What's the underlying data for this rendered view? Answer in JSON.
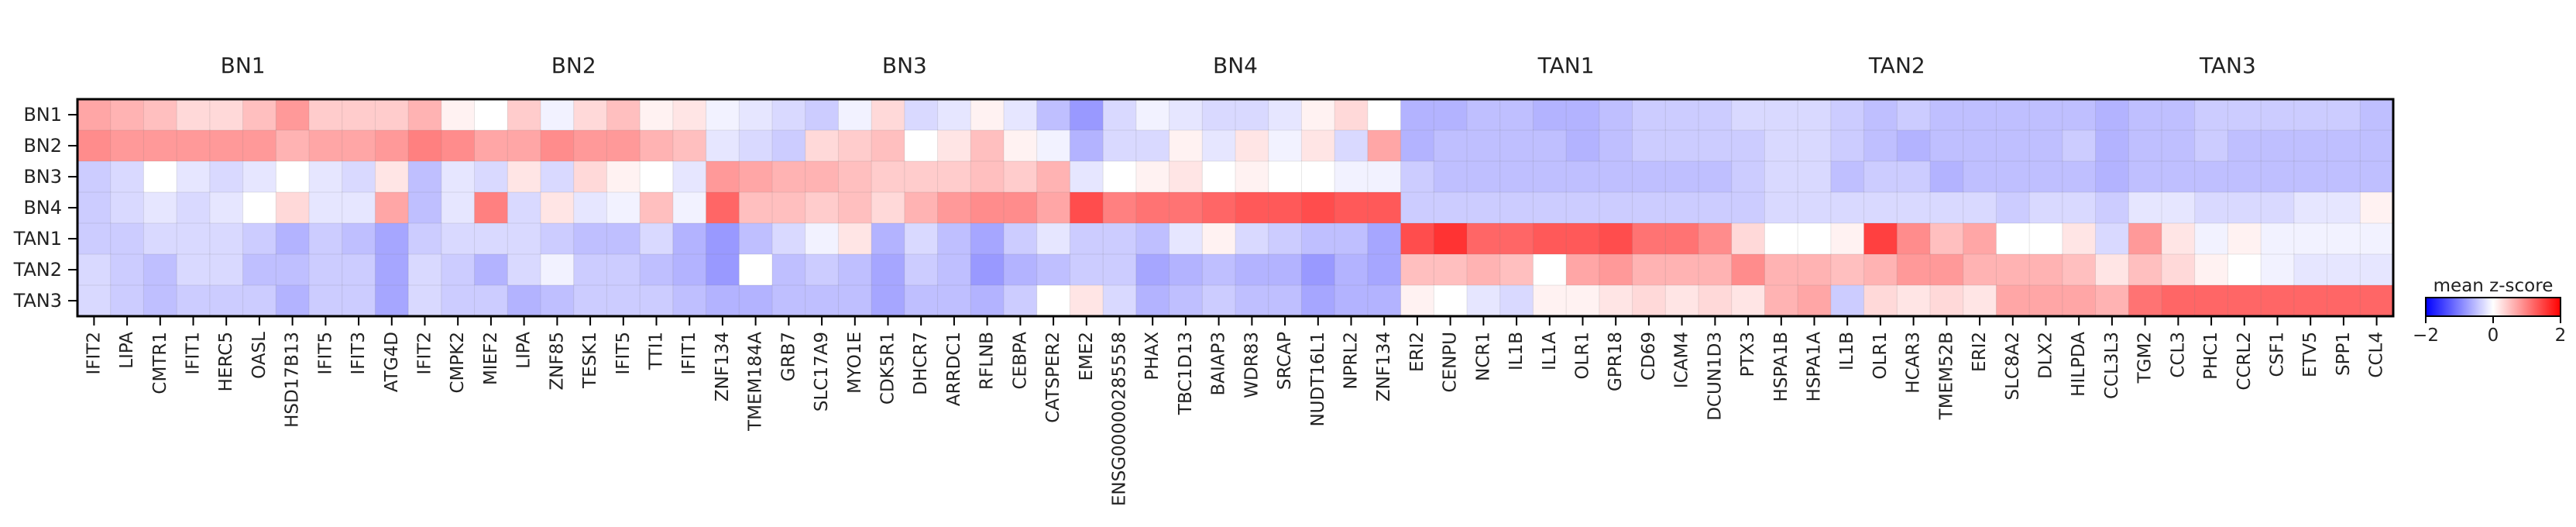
{
  "chart_data": {
    "type": "heatmap",
    "groups": [
      "BN1",
      "BN2",
      "BN3",
      "BN4",
      "TAN1",
      "TAN2",
      "TAN3"
    ],
    "rows": [
      "BN1",
      "BN2",
      "BN3",
      "BN4",
      "TAN1",
      "TAN2",
      "TAN3"
    ],
    "genes": [
      "IFIT2",
      "LIPA",
      "CMTR1",
      "IFIT1",
      "HERC5",
      "OASL",
      "HSD17B13",
      "IFIT5",
      "IFIT3",
      "ATG4D",
      "IFIT2",
      "CMPK2",
      "MIEF2",
      "LIPA",
      "ZNF85",
      "TESK1",
      "IFIT5",
      "TTI1",
      "IFIT1",
      "ZNF134",
      "TMEM184A",
      "GRB7",
      "SLC17A9",
      "MYO1E",
      "CDK5R1",
      "DHCR7",
      "ARRDC1",
      "RFLNB",
      "CEBPA",
      "CATSPER2",
      "EME2",
      "ENSG00000285558",
      "PHAX",
      "TBC1D13",
      "BAIAP3",
      "WDR83",
      "SRCAP",
      "NUDT16L1",
      "NPRL2",
      "ZNF134",
      "ERI2",
      "CENPU",
      "NCR1",
      "IL1B",
      "IL1A",
      "OLR1",
      "GPR18",
      "CD69",
      "ICAM4",
      "DCUN1D3",
      "PTX3",
      "HSPA1B",
      "HSPA1A",
      "IL1B",
      "OLR1",
      "HCAR3",
      "TMEM52B",
      "ERI2",
      "SLC8A2",
      "DLX2",
      "HILPDA",
      "CCL3L3",
      "TGM2",
      "CCL3",
      "PHC1",
      "CCRL2",
      "CSF1",
      "ETV5",
      "SPP1",
      "CCL4"
    ],
    "values": [
      [
        0.7,
        0.6,
        0.5,
        0.3,
        0.3,
        0.5,
        0.8,
        0.4,
        0.4,
        0.4,
        0.6,
        0.1,
        0.0,
        0.4,
        -0.1,
        0.3,
        0.5,
        0.1,
        0.2,
        -0.1,
        -0.2,
        -0.3,
        -0.4,
        -0.1,
        0.3,
        -0.3,
        -0.2,
        0.1,
        -0.2,
        -0.5,
        -0.8,
        -0.3,
        -0.1,
        -0.2,
        -0.3,
        -0.3,
        -0.2,
        0.1,
        0.3,
        0.0,
        -0.6,
        -0.6,
        -0.5,
        -0.5,
        -0.6,
        -0.6,
        -0.5,
        -0.4,
        -0.4,
        -0.4,
        -0.3,
        -0.3,
        -0.3,
        -0.4,
        -0.5,
        -0.4,
        -0.5,
        -0.5,
        -0.5,
        -0.5,
        -0.5,
        -0.6,
        -0.5,
        -0.5,
        -0.4,
        -0.4,
        -0.4,
        -0.4,
        -0.4,
        -0.5
      ],
      [
        0.9,
        0.8,
        0.8,
        0.8,
        0.8,
        0.8,
        0.6,
        0.7,
        0.7,
        0.8,
        1.0,
        0.9,
        0.7,
        0.7,
        0.9,
        0.8,
        0.8,
        0.6,
        0.5,
        -0.2,
        -0.3,
        -0.4,
        0.3,
        0.4,
        0.5,
        0.0,
        0.2,
        0.5,
        0.1,
        -0.1,
        -0.6,
        -0.3,
        -0.3,
        0.1,
        -0.2,
        0.2,
        -0.1,
        0.2,
        -0.3,
        0.7,
        -0.6,
        -0.5,
        -0.5,
        -0.5,
        -0.5,
        -0.6,
        -0.5,
        -0.4,
        -0.4,
        -0.4,
        -0.4,
        -0.3,
        -0.3,
        -0.4,
        -0.5,
        -0.6,
        -0.5,
        -0.5,
        -0.5,
        -0.5,
        -0.4,
        -0.6,
        -0.5,
        -0.5,
        -0.4,
        -0.5,
        -0.5,
        -0.5,
        -0.5,
        -0.5
      ],
      [
        -0.4,
        -0.3,
        0.0,
        -0.2,
        -0.3,
        -0.2,
        0.0,
        -0.2,
        -0.3,
        0.2,
        -0.5,
        -0.2,
        -0.3,
        0.2,
        -0.3,
        0.3,
        0.1,
        0.0,
        -0.2,
        0.8,
        0.7,
        0.6,
        0.6,
        0.5,
        0.4,
        0.4,
        0.4,
        0.5,
        0.4,
        0.6,
        -0.2,
        0.0,
        0.1,
        0.2,
        0.0,
        0.1,
        0.0,
        0.0,
        -0.1,
        -0.1,
        -0.4,
        -0.5,
        -0.5,
        -0.5,
        -0.5,
        -0.5,
        -0.5,
        -0.5,
        -0.5,
        -0.5,
        -0.4,
        -0.3,
        -0.3,
        -0.5,
        -0.4,
        -0.4,
        -0.6,
        -0.5,
        -0.5,
        -0.5,
        -0.5,
        -0.6,
        -0.5,
        -0.5,
        -0.5,
        -0.5,
        -0.5,
        -0.5,
        -0.5,
        -0.5
      ],
      [
        -0.4,
        -0.3,
        -0.2,
        -0.3,
        -0.2,
        0.0,
        0.3,
        -0.2,
        -0.2,
        0.7,
        -0.5,
        -0.2,
        1.0,
        -0.3,
        0.2,
        -0.2,
        -0.1,
        0.5,
        -0.1,
        1.2,
        0.5,
        0.5,
        0.4,
        0.5,
        0.3,
        0.6,
        0.8,
        0.9,
        0.9,
        0.7,
        1.4,
        1.0,
        1.1,
        1.1,
        1.2,
        1.3,
        1.3,
        1.4,
        1.3,
        1.3,
        -0.4,
        -0.4,
        -0.4,
        -0.4,
        -0.4,
        -0.4,
        -0.4,
        -0.4,
        -0.4,
        -0.4,
        -0.4,
        -0.3,
        -0.3,
        -0.3,
        -0.3,
        -0.3,
        -0.3,
        -0.3,
        -0.4,
        -0.3,
        -0.3,
        -0.4,
        -0.2,
        -0.2,
        -0.3,
        -0.3,
        -0.3,
        -0.2,
        -0.2,
        0.1
      ],
      [
        -0.4,
        -0.4,
        -0.3,
        -0.3,
        -0.3,
        -0.4,
        -0.6,
        -0.4,
        -0.5,
        -0.7,
        -0.4,
        -0.3,
        -0.3,
        -0.3,
        -0.4,
        -0.5,
        -0.5,
        -0.3,
        -0.6,
        -0.8,
        -0.5,
        -0.3,
        -0.1,
        0.2,
        -0.6,
        -0.3,
        -0.5,
        -0.7,
        -0.4,
        -0.2,
        -0.4,
        -0.4,
        -0.5,
        -0.2,
        0.1,
        -0.3,
        -0.4,
        -0.5,
        -0.5,
        -0.7,
        1.4,
        1.6,
        1.2,
        1.2,
        1.3,
        1.3,
        1.4,
        1.1,
        1.1,
        0.9,
        0.3,
        0.0,
        0.0,
        0.1,
        1.5,
        0.9,
        0.5,
        0.7,
        0.0,
        0.0,
        0.2,
        -0.3,
        0.8,
        0.2,
        -0.1,
        0.1,
        -0.1,
        -0.1,
        -0.1,
        -0.1
      ],
      [
        -0.3,
        -0.4,
        -0.5,
        -0.3,
        -0.3,
        -0.5,
        -0.5,
        -0.4,
        -0.4,
        -0.7,
        -0.3,
        -0.4,
        -0.6,
        -0.3,
        -0.1,
        -0.4,
        -0.4,
        -0.5,
        -0.6,
        -0.8,
        0.0,
        -0.5,
        -0.4,
        -0.5,
        -0.7,
        -0.4,
        -0.5,
        -0.8,
        -0.6,
        -0.5,
        -0.4,
        -0.4,
        -0.7,
        -0.6,
        -0.5,
        -0.6,
        -0.6,
        -0.8,
        -0.6,
        -0.7,
        0.5,
        0.5,
        0.6,
        0.5,
        0.0,
        0.7,
        0.8,
        0.6,
        0.6,
        0.6,
        0.9,
        0.6,
        0.6,
        0.5,
        0.6,
        0.8,
        0.8,
        0.6,
        0.6,
        0.6,
        0.5,
        0.2,
        0.5,
        0.3,
        0.1,
        0.0,
        -0.1,
        -0.2,
        -0.2,
        -0.2
      ],
      [
        -0.3,
        -0.4,
        -0.5,
        -0.4,
        -0.4,
        -0.4,
        -0.6,
        -0.4,
        -0.4,
        -0.7,
        -0.3,
        -0.4,
        -0.4,
        -0.6,
        -0.5,
        -0.4,
        -0.4,
        -0.4,
        -0.5,
        -0.6,
        -0.6,
        -0.5,
        -0.5,
        -0.5,
        -0.7,
        -0.5,
        -0.5,
        -0.6,
        -0.4,
        0.0,
        0.2,
        -0.3,
        -0.6,
        -0.5,
        -0.4,
        -0.5,
        -0.5,
        -0.7,
        -0.6,
        -0.6,
        0.1,
        0.0,
        -0.2,
        -0.3,
        0.1,
        0.1,
        0.2,
        0.3,
        0.2,
        0.3,
        0.2,
        0.6,
        0.7,
        -0.4,
        0.3,
        0.2,
        0.3,
        0.2,
        0.7,
        0.7,
        0.7,
        0.6,
        1.1,
        1.2,
        1.2,
        1.2,
        1.2,
        1.2,
        1.2,
        1.2
      ]
    ],
    "vmin": -2,
    "vmax": 2,
    "colormap": [
      "#0000ff",
      "#ffffff",
      "#ff0000"
    ],
    "colorbar": {
      "label": "mean z-score",
      "ticks": [
        -2,
        0,
        2
      ]
    }
  }
}
